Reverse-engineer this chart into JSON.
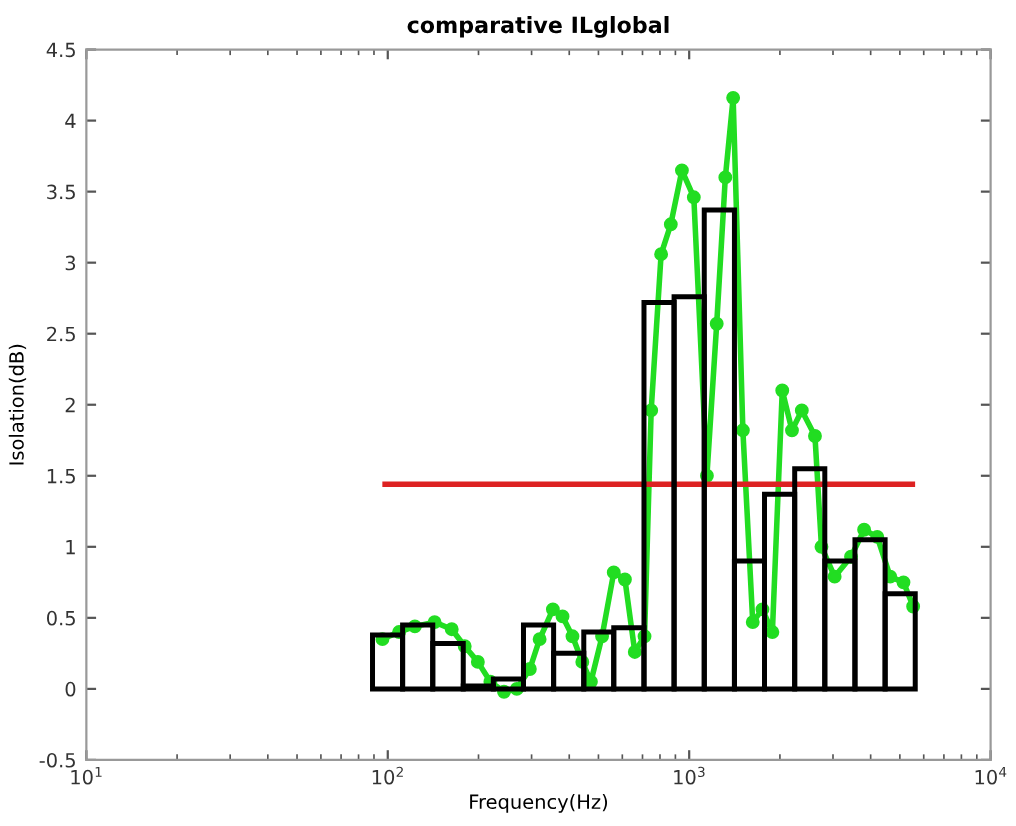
{
  "chart_data": {
    "type": "histogram",
    "title": "comparative ILglobal",
    "xlabel": "Frequency(Hz)",
    "ylabel": "Isolation(dB)",
    "log": "x",
    "xlim": [
      10,
      10000
    ],
    "xticks": [
      {
        "value": 10,
        "label": "10$^{1}$"
      },
      {
        "value": 100,
        "label": "10$^{2}$"
      },
      {
        "value": 1000,
        "label": "10$^{3}$"
      },
      {
        "value": 10000,
        "label": "10$^{4}$"
      }
    ],
    "ylim": [
      -0.5,
      4.5
    ],
    "yticks": [
      -0.5,
      0,
      0.5,
      1,
      1.5,
      2,
      2.5,
      3,
      3.5,
      4,
      4.5
    ],
    "grid": false,
    "bins": [
      89,
      112,
      141,
      178,
      224,
      282,
      355,
      447,
      562,
      708,
      891,
      1122,
      1413,
      1778,
      2239,
      2818,
      3548,
      4467,
      5623
    ],
    "values": [
      0.38,
      0.45,
      0.32,
      0.02,
      0.07,
      0.45,
      0.25,
      0.4,
      0.43,
      2.72,
      2.76,
      3.37,
      0.9,
      1.37,
      1.55,
      0.9,
      1.05,
      0.67
    ],
    "color": "#000000",
    "series": [
      {
        "type": "line",
        "color": "#22dd22",
        "marker": "circle",
        "x": [
          96,
          109,
          123,
          143,
          163,
          180,
          199,
          219,
          243,
          268,
          296,
          319,
          353,
          380,
          410,
          442,
          472,
          514,
          562,
          612,
          660,
          711,
          748,
          807,
          869,
          946,
          1036,
          1145,
          1234,
          1318,
          1399,
          1507,
          1625,
          1750,
          1888,
          2036,
          2193,
          2364,
          2614,
          2747,
          3038,
          3443,
          3805,
          4207,
          4645,
          5140,
          5534
        ],
        "values": [
          0.35,
          0.4,
          0.44,
          0.47,
          0.42,
          0.3,
          0.19,
          0.05,
          -0.02,
          0.0,
          0.14,
          0.35,
          0.56,
          0.51,
          0.37,
          0.19,
          0.05,
          0.37,
          0.82,
          0.77,
          0.26,
          0.37,
          1.96,
          3.06,
          3.27,
          3.65,
          3.46,
          1.5,
          2.57,
          3.6,
          4.16,
          1.82,
          0.47,
          0.56,
          0.4,
          2.1,
          1.82,
          1.96,
          1.78,
          1.0,
          0.79,
          0.93,
          1.12,
          1.07,
          0.79,
          0.75,
          0.58
        ]
      },
      {
        "type": "line",
        "color": "#dd2222",
        "marker": "none",
        "x": [
          98,
          5500
        ],
        "values": [
          1.44,
          1.44
        ]
      }
    ]
  }
}
